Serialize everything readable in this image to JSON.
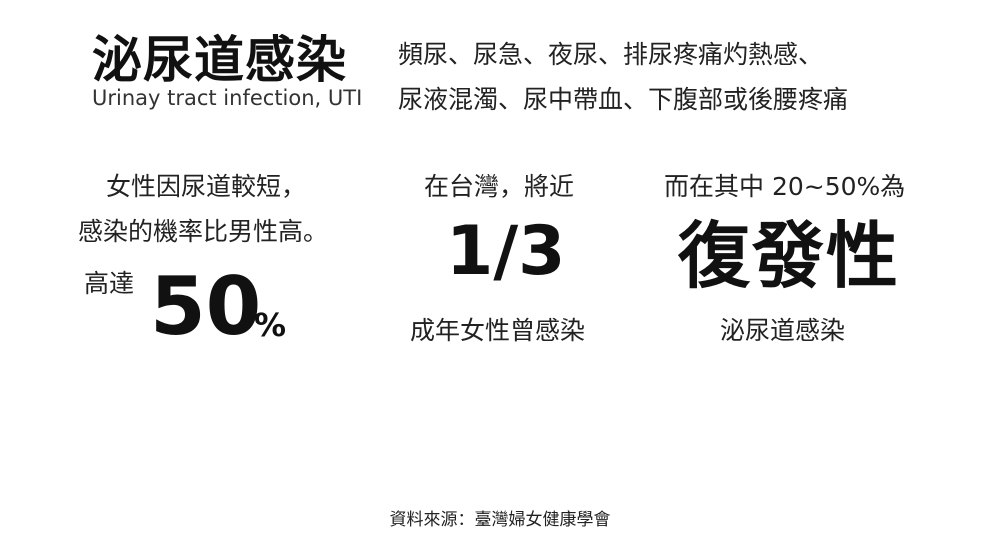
{
  "header": {
    "title": "泌尿道感染",
    "subtitle": "Urinay tract infection, UTI",
    "symptoms_line1": "頻尿、尿急、夜尿、排尿疼痛灼熱感、",
    "symptoms_line2": "尿液混濁、尿中帶血、下腹部或後腰疼痛"
  },
  "stats": {
    "female": {
      "line1": "女性因尿道較短，",
      "line2": "感染的機率比男性高。",
      "prefix": "高達",
      "value": "50",
      "unit": "%"
    },
    "taiwan": {
      "top": "在台灣，將近",
      "value": "1/3",
      "bottom": "成年女性曾感染"
    },
    "recurrent": {
      "top": "而在其中 20~50%為",
      "value": "復發性",
      "bottom": "泌尿道感染"
    }
  },
  "footer": {
    "source": "資料來源：臺灣婦女健康學會"
  }
}
